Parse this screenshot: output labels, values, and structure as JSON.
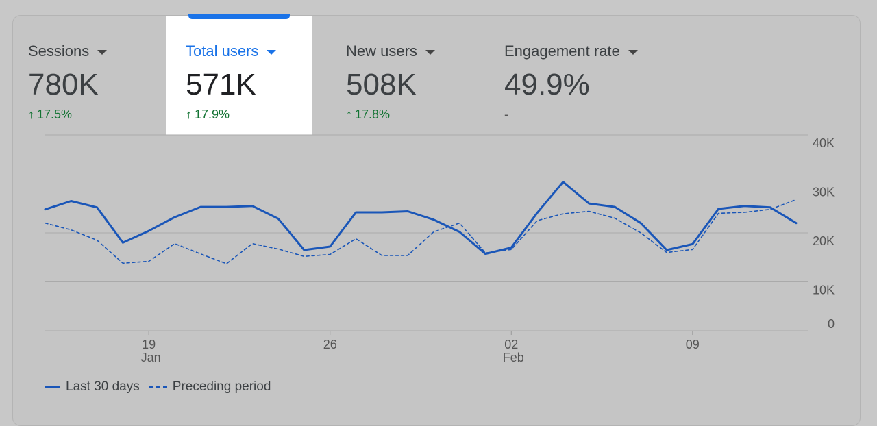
{
  "metrics": [
    {
      "label": "Sessions",
      "value": "780K",
      "change": "17.5%",
      "trend": "up"
    },
    {
      "label": "Total users",
      "value": "571K",
      "change": "17.9%",
      "trend": "up",
      "active": true
    },
    {
      "label": "New users",
      "value": "508K",
      "change": "17.8%",
      "trend": "up"
    },
    {
      "label": "Engagement rate",
      "value": "49.9%",
      "change": "-",
      "trend": "none"
    }
  ],
  "legend": {
    "current": "Last 30 days",
    "previous": "Preceding period"
  },
  "colors": {
    "accent": "#1a73e8",
    "line": "#1a56b8",
    "positive": "#137333"
  },
  "chart_data": {
    "type": "line",
    "y_ticks": [
      "40K",
      "30K",
      "20K",
      "10K",
      "0"
    ],
    "y_tick_values": [
      40000,
      30000,
      20000,
      10000,
      0
    ],
    "ylim": [
      0,
      40000
    ],
    "x_ticks": [
      {
        "index": 4,
        "label": "19",
        "sublabel": "Jan"
      },
      {
        "index": 11,
        "label": "26",
        "sublabel": ""
      },
      {
        "index": 18,
        "label": "02",
        "sublabel": "Feb"
      },
      {
        "index": 25,
        "label": "09",
        "sublabel": ""
      }
    ],
    "series": [
      {
        "name": "Last 30 days",
        "style": "solid",
        "values": [
          24800,
          26500,
          25200,
          18000,
          20400,
          23200,
          25300,
          25300,
          25500,
          22900,
          16500,
          17200,
          24200,
          24200,
          24400,
          22700,
          20200,
          15700,
          17000,
          24100,
          30400,
          26000,
          25300,
          22000,
          16500,
          17700,
          24900,
          25500,
          25200,
          22000
        ]
      },
      {
        "name": "Preceding period",
        "style": "dashed",
        "values": [
          22000,
          20600,
          18500,
          13800,
          14200,
          17800,
          15700,
          13700,
          17800,
          16700,
          15200,
          15600,
          18800,
          15400,
          15400,
          20200,
          22000,
          15900,
          16600,
          22500,
          23900,
          24400,
          23000,
          20000,
          16000,
          16600,
          24000,
          24200,
          24800,
          26800
        ]
      }
    ]
  }
}
